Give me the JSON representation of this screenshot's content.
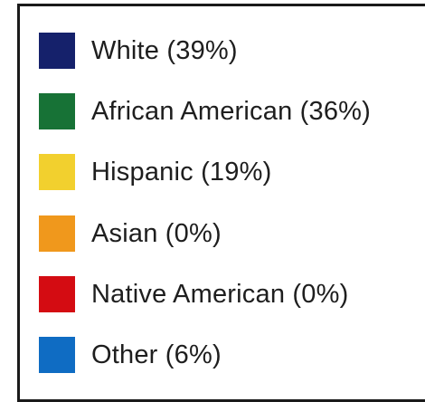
{
  "chart_data": {
    "type": "pie",
    "legend_placement": "full-frame",
    "categories": [
      "White",
      "African American",
      "Hispanic",
      "Asian",
      "Native American",
      "Other"
    ],
    "values": [
      39,
      36,
      19,
      0,
      0,
      6
    ],
    "legend": {
      "items": [
        {
          "label": "White (39%)",
          "color": "#15216b"
        },
        {
          "label": "African American (36%)",
          "color": "#177236"
        },
        {
          "label": "Hispanic (19%)",
          "color": "#f2d02e"
        },
        {
          "label": "Asian (0%)",
          "color": "#f0981c"
        },
        {
          "label": "Native American (0%)",
          "color": "#d40c12"
        },
        {
          "label": "Other (6%)",
          "color": "#0f6cc3"
        }
      ]
    }
  }
}
